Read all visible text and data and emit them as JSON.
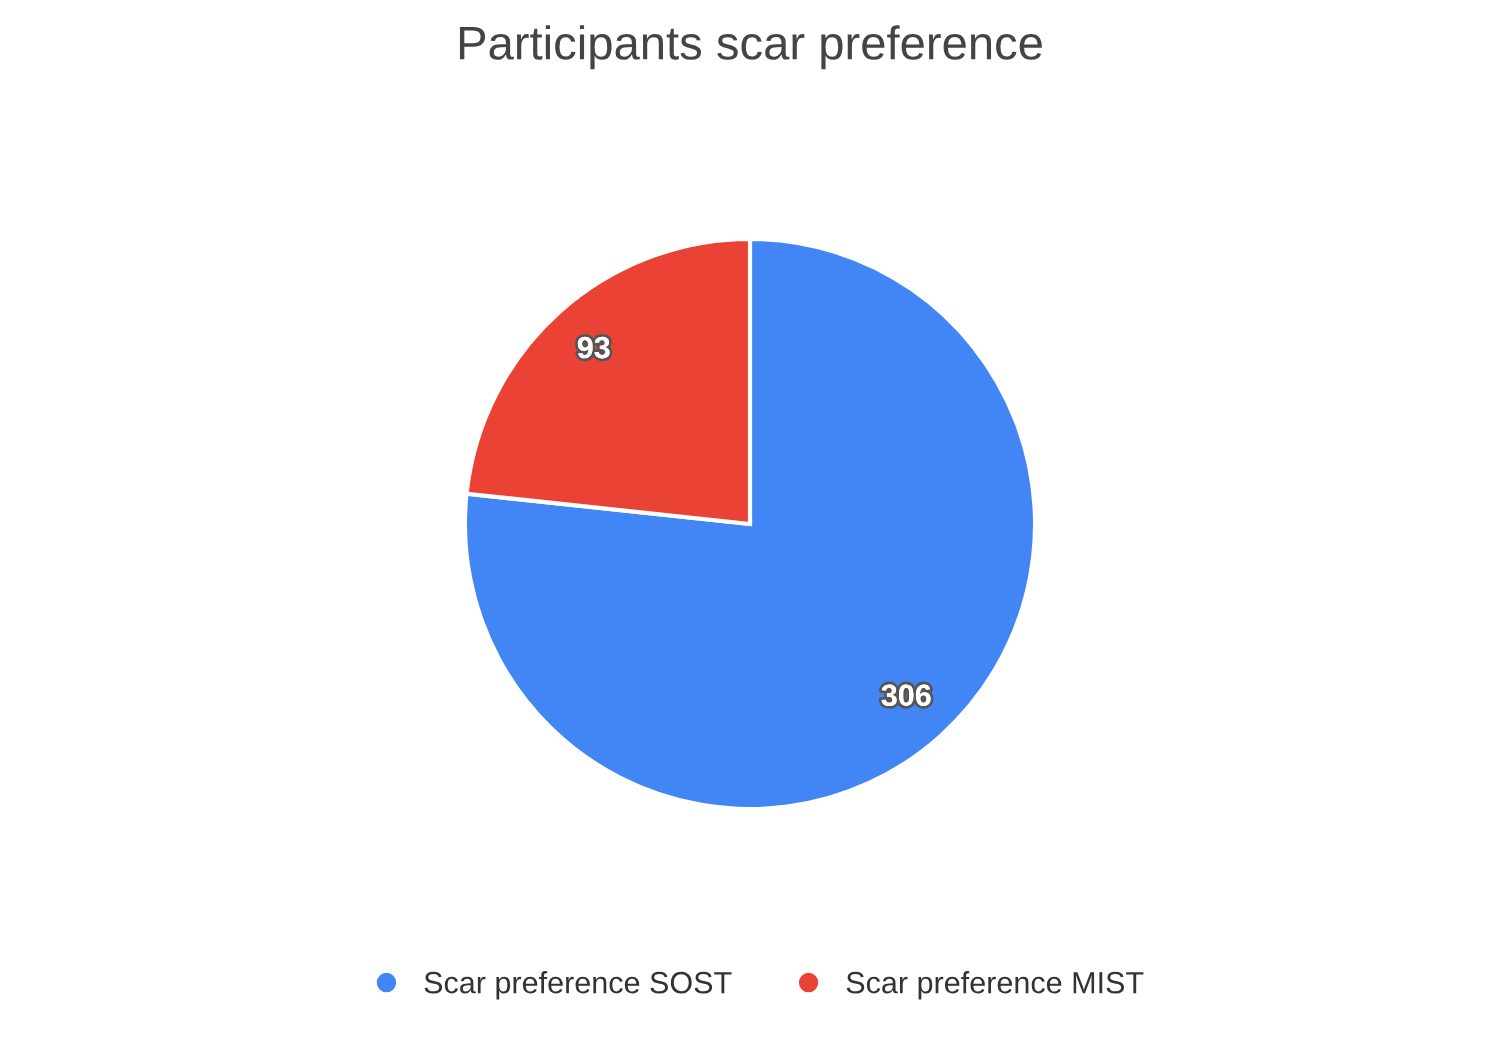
{
  "chart_data": {
    "type": "pie",
    "title": "Participants scar preference",
    "categories": [
      "Scar preference SOST",
      "Scar preference MIST"
    ],
    "values": [
      306,
      93
    ],
    "colors": [
      "#4285f4",
      "#ea4335"
    ],
    "data_labels": true,
    "legend": "bottom"
  }
}
